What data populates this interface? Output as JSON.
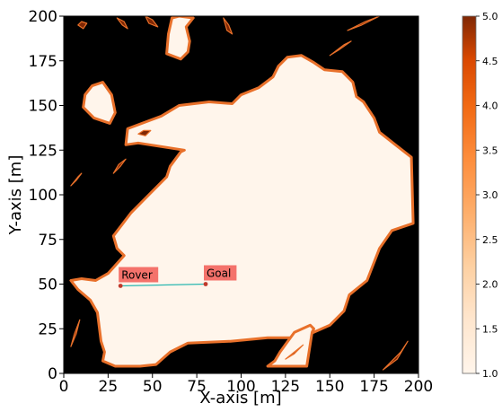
{
  "chart_data": {
    "type": "heatmap",
    "title": "",
    "xlabel": "X-axis [m]",
    "ylabel": "Y-axis [m]",
    "xlim": [
      0,
      200
    ],
    "ylim": [
      0,
      200
    ],
    "x_ticks": [
      "0",
      "25",
      "50",
      "75",
      "100",
      "125",
      "150",
      "175",
      "200"
    ],
    "y_ticks": [
      "0",
      "25",
      "50",
      "75",
      "100",
      "125",
      "150",
      "175",
      "200"
    ],
    "colorbar": {
      "colormap": "Oranges",
      "range": [
        1.0,
        5.0
      ],
      "ticks": [
        "1.0",
        "1.5",
        "2.0",
        "2.5",
        "3.0",
        "3.5",
        "4.0",
        "4.5",
        "5.0"
      ]
    },
    "colors": {
      "low": "#fff5eb",
      "high": "#7f2704",
      "edge": "#e8702a",
      "obstacle": "#000000",
      "path": "#2ab7b0",
      "marker": "#c0392b",
      "label_box": "#f4726b"
    },
    "path": {
      "start": {
        "name": "Rover",
        "x": 32,
        "y": 49
      },
      "goal": {
        "name": "Goal",
        "x": 80,
        "y": 50
      }
    },
    "regions": [
      {
        "name": "main-free-area",
        "points": [
          [
            4,
            52
          ],
          [
            10,
            53
          ],
          [
            18,
            52
          ],
          [
            25,
            56
          ],
          [
            34,
            66
          ],
          [
            30,
            70
          ],
          [
            28,
            77
          ],
          [
            38,
            90
          ],
          [
            48,
            100
          ],
          [
            58,
            110
          ],
          [
            60,
            116
          ],
          [
            66,
            124
          ],
          [
            68,
            125
          ],
          [
            55,
            127
          ],
          [
            42,
            129
          ],
          [
            35,
            128
          ],
          [
            36,
            137
          ],
          [
            55,
            144
          ],
          [
            65,
            150
          ],
          [
            82,
            152
          ],
          [
            95,
            151
          ],
          [
            100,
            156
          ],
          [
            110,
            160
          ],
          [
            118,
            166
          ],
          [
            121,
            172
          ],
          [
            126,
            177
          ],
          [
            134,
            178
          ],
          [
            141,
            174
          ],
          [
            147,
            170
          ],
          [
            157,
            169
          ],
          [
            163,
            163
          ],
          [
            165,
            155
          ],
          [
            169,
            152
          ],
          [
            175,
            143
          ],
          [
            178,
            135
          ],
          [
            187,
            128
          ],
          [
            196,
            121
          ],
          [
            197,
            84
          ],
          [
            185,
            80
          ],
          [
            178,
            70
          ],
          [
            171,
            52
          ],
          [
            161,
            44
          ],
          [
            158,
            35
          ],
          [
            150,
            27
          ],
          [
            134,
            20
          ],
          [
            115,
            20
          ],
          [
            94,
            18
          ],
          [
            70,
            17
          ],
          [
            60,
            12
          ],
          [
            52,
            5
          ],
          [
            43,
            4
          ],
          [
            29,
            4
          ],
          [
            22,
            7
          ],
          [
            23,
            12
          ],
          [
            21,
            18
          ],
          [
            20,
            26
          ],
          [
            19,
            34
          ],
          [
            15,
            41
          ],
          [
            8,
            47
          ]
        ]
      },
      {
        "name": "top-free-blob",
        "points": [
          [
            58,
            179
          ],
          [
            66,
            176
          ],
          [
            70,
            180
          ],
          [
            71,
            186
          ],
          [
            69,
            194
          ],
          [
            73,
            199
          ],
          [
            65,
            200
          ],
          [
            61,
            199
          ],
          [
            59,
            190
          ]
        ]
      },
      {
        "name": "left-free-blob",
        "points": [
          [
            11,
            149
          ],
          [
            17,
            143
          ],
          [
            26,
            140
          ],
          [
            29,
            146
          ],
          [
            27,
            156
          ],
          [
            22,
            163
          ],
          [
            16,
            161
          ],
          [
            12,
            156
          ]
        ]
      },
      {
        "name": "bottom-free-blob",
        "points": [
          [
            115,
            4
          ],
          [
            137,
            4
          ],
          [
            140,
            23
          ],
          [
            141,
            25
          ],
          [
            139,
            27
          ],
          [
            130,
            23
          ],
          [
            122,
            12
          ],
          [
            119,
            7
          ]
        ]
      }
    ],
    "streaks": [
      {
        "name": "streak-a",
        "points": [
          [
            8,
            195
          ],
          [
            10,
            197
          ],
          [
            13,
            196
          ],
          [
            11,
            193
          ]
        ]
      },
      {
        "name": "streak-b",
        "points": [
          [
            30,
            199
          ],
          [
            34,
            197
          ],
          [
            36,
            193
          ],
          [
            33,
            195
          ]
        ]
      },
      {
        "name": "streak-c",
        "points": [
          [
            46,
            200
          ],
          [
            50,
            198
          ],
          [
            53,
            194
          ],
          [
            48,
            196
          ]
        ]
      },
      {
        "name": "streak-d",
        "points": [
          [
            90,
            199
          ],
          [
            93,
            195
          ],
          [
            95,
            190
          ],
          [
            92,
            192
          ]
        ]
      },
      {
        "name": "streak-e",
        "points": [
          [
            160,
            192
          ],
          [
            170,
            197
          ],
          [
            178,
            200
          ],
          [
            168,
            195
          ]
        ]
      },
      {
        "name": "streak-f",
        "points": [
          [
            150,
            178
          ],
          [
            158,
            184
          ],
          [
            162,
            186
          ],
          [
            155,
            181
          ]
        ]
      },
      {
        "name": "streak-g",
        "points": [
          [
            4,
            105
          ],
          [
            8,
            110
          ],
          [
            10,
            112
          ],
          [
            7,
            108
          ]
        ]
      },
      {
        "name": "streak-h",
        "points": [
          [
            28,
            112
          ],
          [
            32,
            116
          ],
          [
            35,
            120
          ],
          [
            31,
            117
          ]
        ]
      },
      {
        "name": "streak-i",
        "points": [
          [
            180,
            2
          ],
          [
            188,
            8
          ],
          [
            194,
            18
          ],
          [
            190,
            12
          ]
        ]
      },
      {
        "name": "streak-j",
        "points": [
          [
            125,
            8
          ],
          [
            130,
            12
          ],
          [
            135,
            16
          ],
          [
            130,
            11
          ]
        ]
      },
      {
        "name": "streak-k",
        "points": [
          [
            4,
            15
          ],
          [
            7,
            22
          ],
          [
            9,
            30
          ],
          [
            6,
            22
          ]
        ]
      },
      {
        "name": "streak-l",
        "points": [
          [
            42,
            134
          ],
          [
            46,
            133
          ],
          [
            49,
            136
          ],
          [
            45,
            136
          ]
        ]
      }
    ]
  }
}
